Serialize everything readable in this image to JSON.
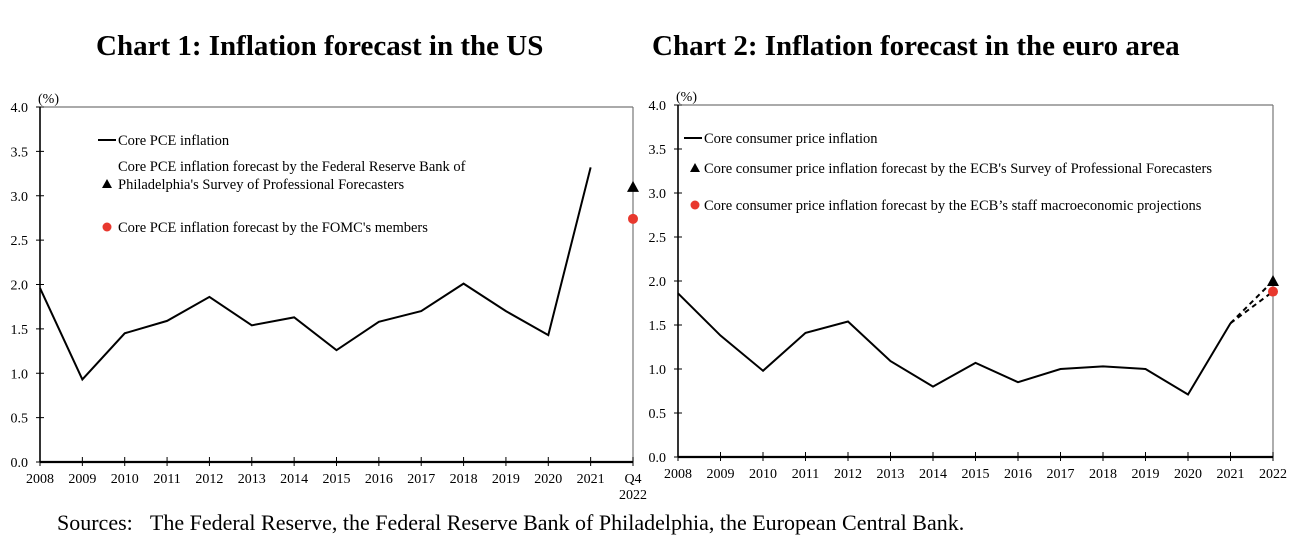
{
  "chart_data": [
    {
      "type": "line",
      "title": "Chart 1: Inflation forecast in the US",
      "ylabel": "(%)",
      "ylim": [
        0.0,
        4.0
      ],
      "yticks": [
        "0.0",
        "0.5",
        "1.0",
        "1.5",
        "2.0",
        "2.5",
        "3.0",
        "3.5",
        "4.0"
      ],
      "ytick_values": [
        0,
        0.5,
        1,
        1.5,
        2,
        2.5,
        3,
        3.5,
        4
      ],
      "categories": [
        "2008",
        "2009",
        "2010",
        "2011",
        "2012",
        "2013",
        "2014",
        "2015",
        "2016",
        "2017",
        "2018",
        "2019",
        "2020",
        "2021",
        "Q4 2022"
      ],
      "xtick_labels": [
        [
          "2008"
        ],
        [
          "2009"
        ],
        [
          "2010"
        ],
        [
          "2011"
        ],
        [
          "2012"
        ],
        [
          "2013"
        ],
        [
          "2014"
        ],
        [
          "2015"
        ],
        [
          "2016"
        ],
        [
          "2017"
        ],
        [
          "2018"
        ],
        [
          "2019"
        ],
        [
          "2020"
        ],
        [
          "2021"
        ],
        [
          "Q4",
          "2022"
        ]
      ],
      "y_axis_side": "left",
      "series": [
        {
          "name": "Core PCE inflation",
          "style": "solid-line",
          "color": "#000000",
          "values": [
            1.96,
            0.93,
            1.45,
            1.59,
            1.86,
            1.54,
            1.63,
            1.26,
            1.58,
            1.7,
            2.01,
            1.7,
            1.43,
            3.32,
            null
          ]
        },
        {
          "name": "Core PCE inflation forecast by the Federal Reserve Bank of Philadelphia's Survey of Professional Forecasters",
          "legend_lines": [
            "Core PCE inflation forecast by the Federal Reserve Bank of",
            "Philadelphia's Survey of Professional Forecasters"
          ],
          "style": "triangle-marker",
          "color": "#000000",
          "points": [
            {
              "x": "Q4 2022",
              "y": 3.1
            }
          ]
        },
        {
          "name": "Core PCE inflation forecast by the FOMC's members",
          "legend_lines": [
            "Core PCE inflation forecast by the FOMC's members"
          ],
          "style": "circle-marker",
          "color": "#e8382e",
          "points": [
            {
              "x": "Q4 2022",
              "y": 2.74
            }
          ]
        }
      ],
      "legend_position": "top-left",
      "grid": false
    },
    {
      "type": "line",
      "title": "Chart 2: Inflation forecast in the euro area",
      "ylabel": "(%)",
      "ylim": [
        0.0,
        4.0
      ],
      "yticks": [
        "0.0",
        "0.5",
        "1.0",
        "1.5",
        "2.0",
        "2.5",
        "3.0",
        "3.5",
        "4.0"
      ],
      "ytick_values": [
        0,
        0.5,
        1,
        1.5,
        2,
        2.5,
        3,
        3.5,
        4
      ],
      "categories": [
        "2008",
        "2009",
        "2010",
        "2011",
        "2012",
        "2013",
        "2014",
        "2015",
        "2016",
        "2017",
        "2018",
        "2019",
        "2020",
        "2021",
        "2022"
      ],
      "xtick_labels": [
        [
          "2008"
        ],
        [
          "2009"
        ],
        [
          "2010"
        ],
        [
          "2011"
        ],
        [
          "2012"
        ],
        [
          "2013"
        ],
        [
          "2014"
        ],
        [
          "2015"
        ],
        [
          "2016"
        ],
        [
          "2017"
        ],
        [
          "2018"
        ],
        [
          "2019"
        ],
        [
          "2020"
        ],
        [
          "2021"
        ],
        [
          "2022"
        ]
      ],
      "y_axis_side": "left",
      "series": [
        {
          "name": "Core consumer price inflation",
          "style": "solid-line",
          "color": "#000000",
          "values": [
            1.86,
            1.38,
            0.98,
            1.41,
            1.54,
            1.09,
            0.8,
            1.07,
            0.85,
            1.0,
            1.03,
            1.0,
            0.71,
            1.52,
            null
          ]
        },
        {
          "name": "Core consumer price inflation forecast by the ECB's Survey of Professional Forecasters",
          "legend_lines": [
            "Core consumer price inflation forecast by the ECB's Survey of Professional Forecasters"
          ],
          "style": "triangle-marker-dashed",
          "color": "#000000",
          "points": [
            {
              "x": "2022",
              "y": 2.0
            }
          ]
        },
        {
          "name": "Core consumer price inflation forecast by the ECB’s staff macroeconomic projections",
          "legend_lines": [
            "Core consumer price inflation forecast by the ECB’s staff macroeconomic projections"
          ],
          "style": "circle-marker-dashed",
          "color": "#e8382e",
          "points": [
            {
              "x": "2022",
              "y": 1.88
            }
          ]
        }
      ],
      "legend_position": "top-left",
      "grid": false
    }
  ],
  "footer": {
    "sources_label": "Sources:",
    "sources_text": "The Federal Reserve, the Federal Reserve Bank of Philadelphia, the European Central Bank."
  }
}
